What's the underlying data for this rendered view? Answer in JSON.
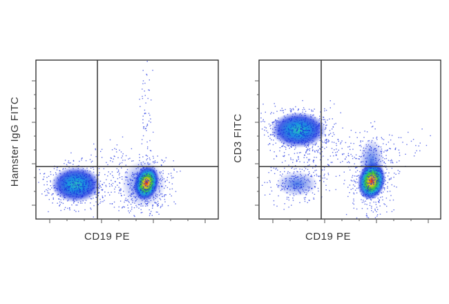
{
  "panels": [
    {
      "x_label": "CD19 PE",
      "y_label": "Hamster IgG FITC"
    },
    {
      "x_label": "CD19 PE",
      "y_label": "CD3 FITC"
    }
  ]
}
